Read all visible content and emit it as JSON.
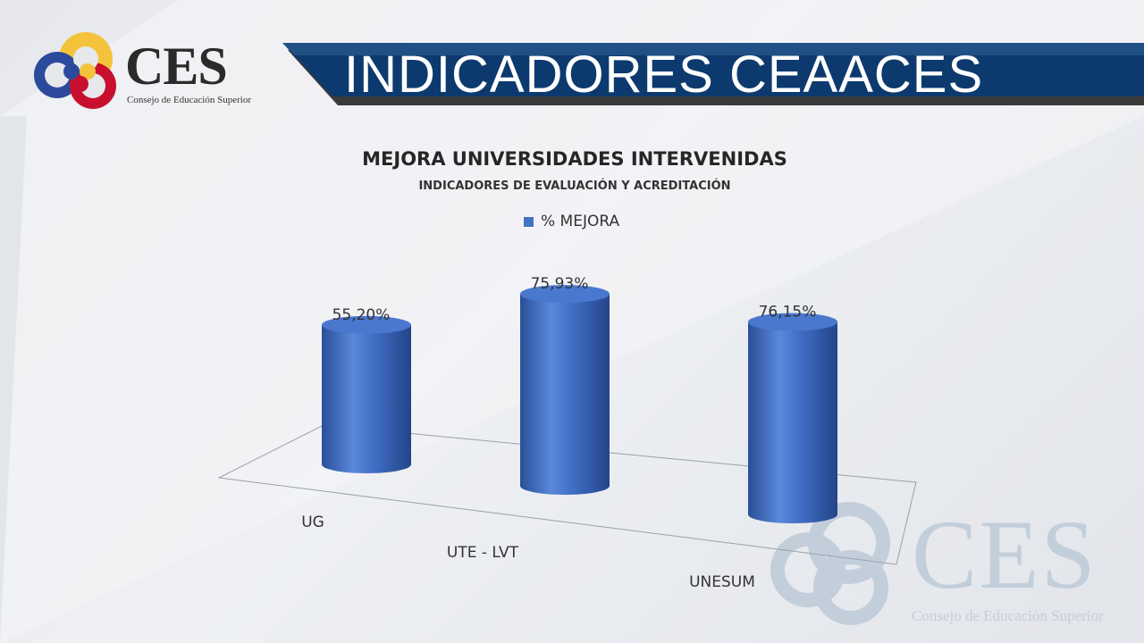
{
  "header": {
    "title": "INDICADORES CEAACES",
    "logo_text": "CES",
    "logo_subtitle": "Consejo de Educación Superior"
  },
  "watermark": {
    "text": "CES",
    "subtitle": "Consejo de Educación Superior"
  },
  "colors": {
    "banner": "#0d3a6e",
    "bar": "#4472c4",
    "logo_yellow": "#f5c33b",
    "logo_blue": "#2c4a9c",
    "logo_red": "#c8102e"
  },
  "chart_data": {
    "type": "bar",
    "style": "3d-cylinder",
    "title": "MEJORA UNIVERSIDADES INTERVENIDAS",
    "subtitle": "INDICADORES DE EVALUACIÓN Y ACREDITACIÓN",
    "categories": [
      "UG",
      "UTE - LVT",
      "UNESUM"
    ],
    "series": [
      {
        "name": "% MEJORA",
        "values": [
          55.2,
          75.93,
          76.15
        ],
        "labels": [
          "55,20%",
          "75,93%",
          "76,15%"
        ]
      }
    ],
    "legend": "top-center",
    "grid": false
  }
}
